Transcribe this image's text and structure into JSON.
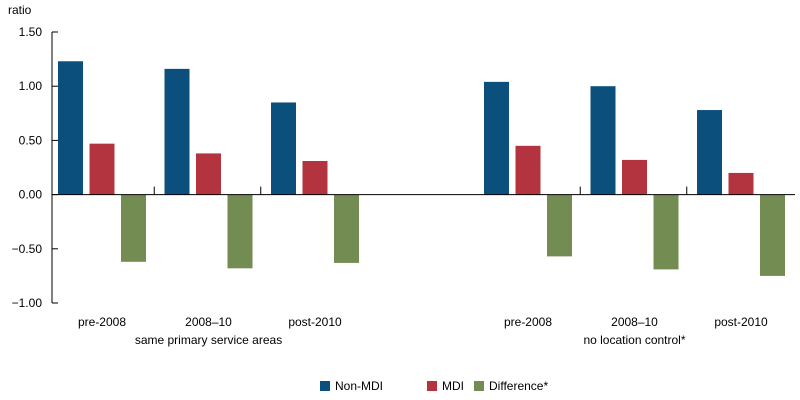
{
  "chart_data": {
    "type": "bar",
    "title": "",
    "ylabel": "ratio",
    "xlabel": "",
    "ylim": [
      -1.0,
      1.5
    ],
    "yticks": [
      {
        "value": 1.5,
        "label": "1.50"
      },
      {
        "value": 1.0,
        "label": "1.00"
      },
      {
        "value": 0.5,
        "label": "0.50"
      },
      {
        "value": 0.0,
        "label": "0.00"
      },
      {
        "value": -0.5,
        "label": "−0.50"
      },
      {
        "value": -1.0,
        "label": "−1.00"
      }
    ],
    "groups": [
      {
        "label": "same primary service areas",
        "categories": [
          "pre-2008",
          "2008–10",
          "post-2010"
        ]
      },
      {
        "label": "no location control*",
        "categories": [
          "pre-2008",
          "2008–10",
          "post-2010"
        ]
      }
    ],
    "series": [
      {
        "name": "Non-MDI",
        "color": "#0b4f7c",
        "values": [
          [
            1.23,
            1.16,
            0.85
          ],
          [
            1.04,
            1.0,
            0.78
          ]
        ]
      },
      {
        "name": "MDI",
        "color": "#b3343f",
        "values": [
          [
            0.47,
            0.38,
            0.31
          ],
          [
            0.45,
            0.32,
            0.2
          ]
        ]
      },
      {
        "name": "Difference*",
        "color": "#738c52",
        "values": [
          [
            -0.62,
            -0.68,
            -0.63
          ],
          [
            -0.57,
            -0.69,
            -0.75
          ]
        ]
      }
    ],
    "legend_position": "bottom-center",
    "grid": false
  }
}
